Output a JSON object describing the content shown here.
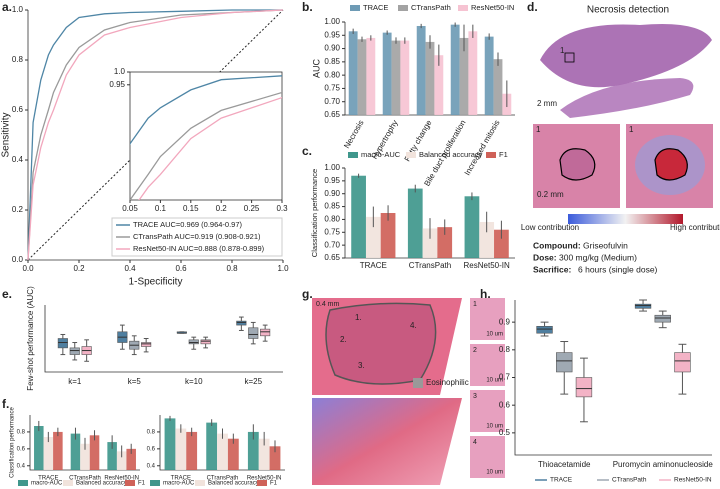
{
  "chart_data": [
    {
      "type": "line",
      "label": "a.",
      "xlabel": "1-Specificity",
      "ylabel": "Sensitivity",
      "x": [
        0,
        0.02,
        0.05,
        0.08,
        0.1,
        0.15,
        0.2,
        0.3,
        0.4,
        0.6,
        0.8,
        1
      ],
      "series": [
        {
          "name": "TRACE AUC=0.969 (0.964-0.97)",
          "color": "#4f86a6",
          "values": [
            0,
            0.55,
            0.72,
            0.82,
            0.86,
            0.93,
            0.97,
            0.985,
            0.99,
            0.995,
            1,
            1
          ]
        },
        {
          "name": "CTransPath AUC=0.919 (0.908-0.921)",
          "color": "#9a9a9a",
          "values": [
            0,
            0.35,
            0.5,
            0.6,
            0.67,
            0.78,
            0.85,
            0.92,
            0.95,
            0.98,
            0.99,
            1
          ]
        },
        {
          "name": "ResNet50-IN AUC=0.888 (0.878-0.899)",
          "color": "#f2a7bd",
          "values": [
            0,
            0.3,
            0.45,
            0.55,
            0.6,
            0.74,
            0.82,
            0.9,
            0.93,
            0.97,
            0.99,
            1
          ]
        }
      ],
      "xlim": [
        0,
        1
      ],
      "ylim": [
        0,
        1
      ],
      "xticks": [
        {
          "value": 0,
          "label": "0.0"
        },
        0.2,
        0.4,
        0.6,
        0.8,
        {
          "value": 1,
          "label": "1.0"
        }
      ],
      "yticks": [
        {
          "value": 0,
          "label": "0.0"
        },
        0.2,
        0.4,
        0.6,
        0.8,
        {
          "value": 1,
          "label": "1.0"
        }
      ],
      "legend": "lower right",
      "inset": {
        "xlim": [
          0.05,
          0.3
        ],
        "ylim": [
          0.5,
          1
        ],
        "xticks": [
          0.05,
          0.1,
          0.15,
          0.2,
          0.25,
          0.3
        ],
        "yticks": [
          {
            "value": 0.95,
            "label": "0.95"
          },
          {
            "value": 1,
            "label": "1.0"
          }
        ]
      }
    },
    {
      "type": "bar",
      "label": "b.",
      "ylabel": "AUC",
      "categories": [
        "Necrosis",
        "Hypertrophy",
        "Fatty change",
        "Bile duct proliferation",
        "Increased mitosis"
      ],
      "series": [
        {
          "name": "TRACE",
          "color": "#6e9bb5",
          "values": [
            0.965,
            0.96,
            0.985,
            0.99,
            0.945
          ],
          "errors": [
            0.01,
            0.008,
            0.008,
            0.008,
            0.012
          ]
        },
        {
          "name": "CTransPath",
          "color": "#a3a3a3",
          "values": [
            0.935,
            0.93,
            0.925,
            0.94,
            0.86
          ],
          "errors": [
            0.01,
            0.012,
            0.025,
            0.05,
            0.025
          ]
        },
        {
          "name": "ResNet50-IN",
          "color": "#f6c3d2",
          "values": [
            0.94,
            0.93,
            0.875,
            0.965,
            0.73
          ],
          "errors": [
            0.01,
            0.012,
            0.04,
            0.025,
            0.05
          ]
        }
      ],
      "ylim": [
        0.65,
        1
      ],
      "yticks": [
        {
          "value": 0.65,
          "label": "0.65"
        },
        {
          "value": 0.7,
          "label": "0.70"
        },
        {
          "value": 0.75,
          "label": "0.75"
        },
        {
          "value": 0.8,
          "label": "0.80"
        },
        {
          "value": 0.85,
          "label": "0.85"
        },
        {
          "value": 0.9,
          "label": "0.90"
        },
        {
          "value": 0.95,
          "label": "0.95"
        },
        {
          "value": 1,
          "label": "1.00"
        }
      ]
    },
    {
      "type": "bar",
      "label": "c.",
      "ylabel": "Classification performance",
      "categories": [
        "TRACE",
        "CTransPath",
        "ResNet50-IN"
      ],
      "series": [
        {
          "name": "macro-AUC",
          "color": "#3f978c",
          "values": [
            0.97,
            0.92,
            0.89
          ],
          "errors": [
            0.008,
            0.015,
            0.015
          ]
        },
        {
          "name": "Balanced accuracy",
          "color": "#f1e3dc",
          "values": [
            0.81,
            0.765,
            0.79
          ],
          "errors": [
            0.04,
            0.04,
            0.04
          ]
        },
        {
          "name": "F1",
          "color": "#cf6158",
          "values": [
            0.825,
            0.77,
            0.76
          ],
          "errors": [
            0.03,
            0.03,
            0.035
          ]
        }
      ],
      "ylim": [
        0.65,
        1
      ],
      "yticks": [
        {
          "value": 0.65,
          "label": "0.65"
        },
        {
          "value": 0.7,
          "label": "0.70"
        },
        {
          "value": 0.75,
          "label": "0.75"
        },
        {
          "value": 0.8,
          "label": "0.80"
        },
        {
          "value": 0.85,
          "label": "0.85"
        },
        {
          "value": 0.9,
          "label": "0.90"
        },
        {
          "value": 0.95,
          "label": "0.95"
        },
        {
          "value": 1,
          "label": "1.00"
        }
      ]
    },
    {
      "type": "box",
      "label": "e.",
      "ylabel": "Few-shot performance (AUC)",
      "categories": [
        "k=1",
        "k=5",
        "k=10",
        "k=25"
      ],
      "series": [
        {
          "color": "#4f7fa0",
          "values": [
            [
              0.58,
              0.63,
              0.67,
              0.7,
              0.73
            ],
            [
              0.62,
              0.67,
              0.71,
              0.75,
              0.8
            ],
            [
              0.74,
              0.74,
              0.74,
              0.75,
              0.75
            ],
            [
              0.76,
              0.8,
              0.82,
              0.83,
              0.86
            ]
          ]
        },
        {
          "color": "#9fa9b3",
          "values": [
            [
              0.54,
              0.58,
              0.61,
              0.63,
              0.67
            ],
            [
              0.58,
              0.62,
              0.65,
              0.68,
              0.72
            ],
            [
              0.62,
              0.66,
              0.67,
              0.69,
              0.71
            ],
            [
              0.66,
              0.7,
              0.73,
              0.78,
              0.82
            ]
          ]
        },
        {
          "color": "#f3b3c6",
          "values": [
            [
              0.53,
              0.58,
              0.61,
              0.64,
              0.69
            ],
            [
              0.6,
              0.64,
              0.66,
              0.67,
              0.7
            ],
            [
              0.63,
              0.66,
              0.68,
              0.69,
              0.71
            ],
            [
              0.68,
              0.72,
              0.75,
              0.77,
              0.8
            ]
          ]
        }
      ],
      "ylim": [
        0.45,
        0.95
      ]
    },
    {
      "type": "bar",
      "label": "f.",
      "ylabel": "Classification performance",
      "categories": [
        "TRACE",
        "CTransPath",
        "ResNet50-IN"
      ],
      "series": [
        {
          "name": "macro-AUC",
          "color": "#3f978c",
          "values": [
            0.87,
            0.78,
            0.68
          ],
          "errors": [
            0.06,
            0.07,
            0.08
          ]
        },
        {
          "name": "Balanced accuracy",
          "color": "#f1e3dc",
          "values": [
            0.74,
            0.66,
            0.57
          ],
          "errors": [
            0.06,
            0.07,
            0.07
          ]
        },
        {
          "name": "F1",
          "color": "#cf6158",
          "values": [
            0.8,
            0.76,
            0.6
          ],
          "errors": [
            0.05,
            0.06,
            0.06
          ]
        }
      ],
      "ylim": [
        0.35,
        1
      ],
      "yticks": [
        0.4,
        0.6,
        0.8
      ]
    },
    {
      "type": "bar",
      "categories": [
        "TRACE",
        "CTransPath",
        "ResNet50-IN"
      ],
      "series": [
        {
          "name": "macro-AUC",
          "color": "#3f978c",
          "values": [
            0.96,
            0.91,
            0.8
          ],
          "errors": [
            0.03,
            0.04,
            0.09
          ]
        },
        {
          "name": "Balanced accuracy",
          "color": "#f1e3dc",
          "values": [
            0.84,
            0.78,
            0.72
          ],
          "errors": [
            0.05,
            0.06,
            0.08
          ]
        },
        {
          "name": "F1",
          "color": "#cf6158",
          "values": [
            0.8,
            0.72,
            0.63
          ],
          "errors": [
            0.05,
            0.06,
            0.07
          ]
        }
      ],
      "ylim": [
        0.35,
        1
      ],
      "yticks": [
        0.4,
        0.6,
        0.8
      ]
    },
    {
      "type": "box",
      "label": "h.",
      "categories": [
        "Thioacetamide",
        "Puromycin aminonucleoside"
      ],
      "series": [
        {
          "name": "TRACE",
          "color": "#4f7fa0",
          "values": [
            [
              0.85,
              0.86,
              0.875,
              0.885,
              0.9
            ],
            [
              0.94,
              0.95,
              0.96,
              0.965,
              0.98
            ]
          ]
        },
        {
          "name": "CTransPath",
          "color": "#9fa9b3",
          "values": [
            [
              0.64,
              0.72,
              0.76,
              0.79,
              0.83
            ],
            [
              0.88,
              0.9,
              0.915,
              0.925,
              0.94
            ]
          ]
        },
        {
          "name": "ResNet50-IN",
          "color": "#f3b3c6",
          "values": [
            [
              0.54,
              0.63,
              0.66,
              0.7,
              0.77
            ],
            [
              0.64,
              0.72,
              0.76,
              0.79,
              0.82
            ]
          ]
        }
      ],
      "ylim": [
        0.42,
        0.98
      ],
      "yticks": [
        0.5,
        0.6,
        0.7,
        0.8,
        0.9
      ]
    }
  ],
  "images": {
    "d": {
      "label": "d.",
      "title": "Necrosis detection",
      "region": "1",
      "scale_large": "2 mm",
      "scale_small": "0.2 mm",
      "low": "Low contribution",
      "high": "High contribution",
      "info": [
        [
          "Compound:",
          "Griseofulvin"
        ],
        [
          "Dose:",
          "300 mg/kg (Medium)"
        ],
        [
          "Sacrifice:",
          "6 hours (single dose)"
        ]
      ]
    },
    "g": {
      "label": "g.",
      "scale": "0.4 mm",
      "regions": [
        "1.",
        "2.",
        "3.",
        "4."
      ],
      "legend": "Eosinophilic",
      "tiles": [
        "1",
        "2",
        "3",
        "4"
      ],
      "tile_scale": "10 um"
    }
  }
}
